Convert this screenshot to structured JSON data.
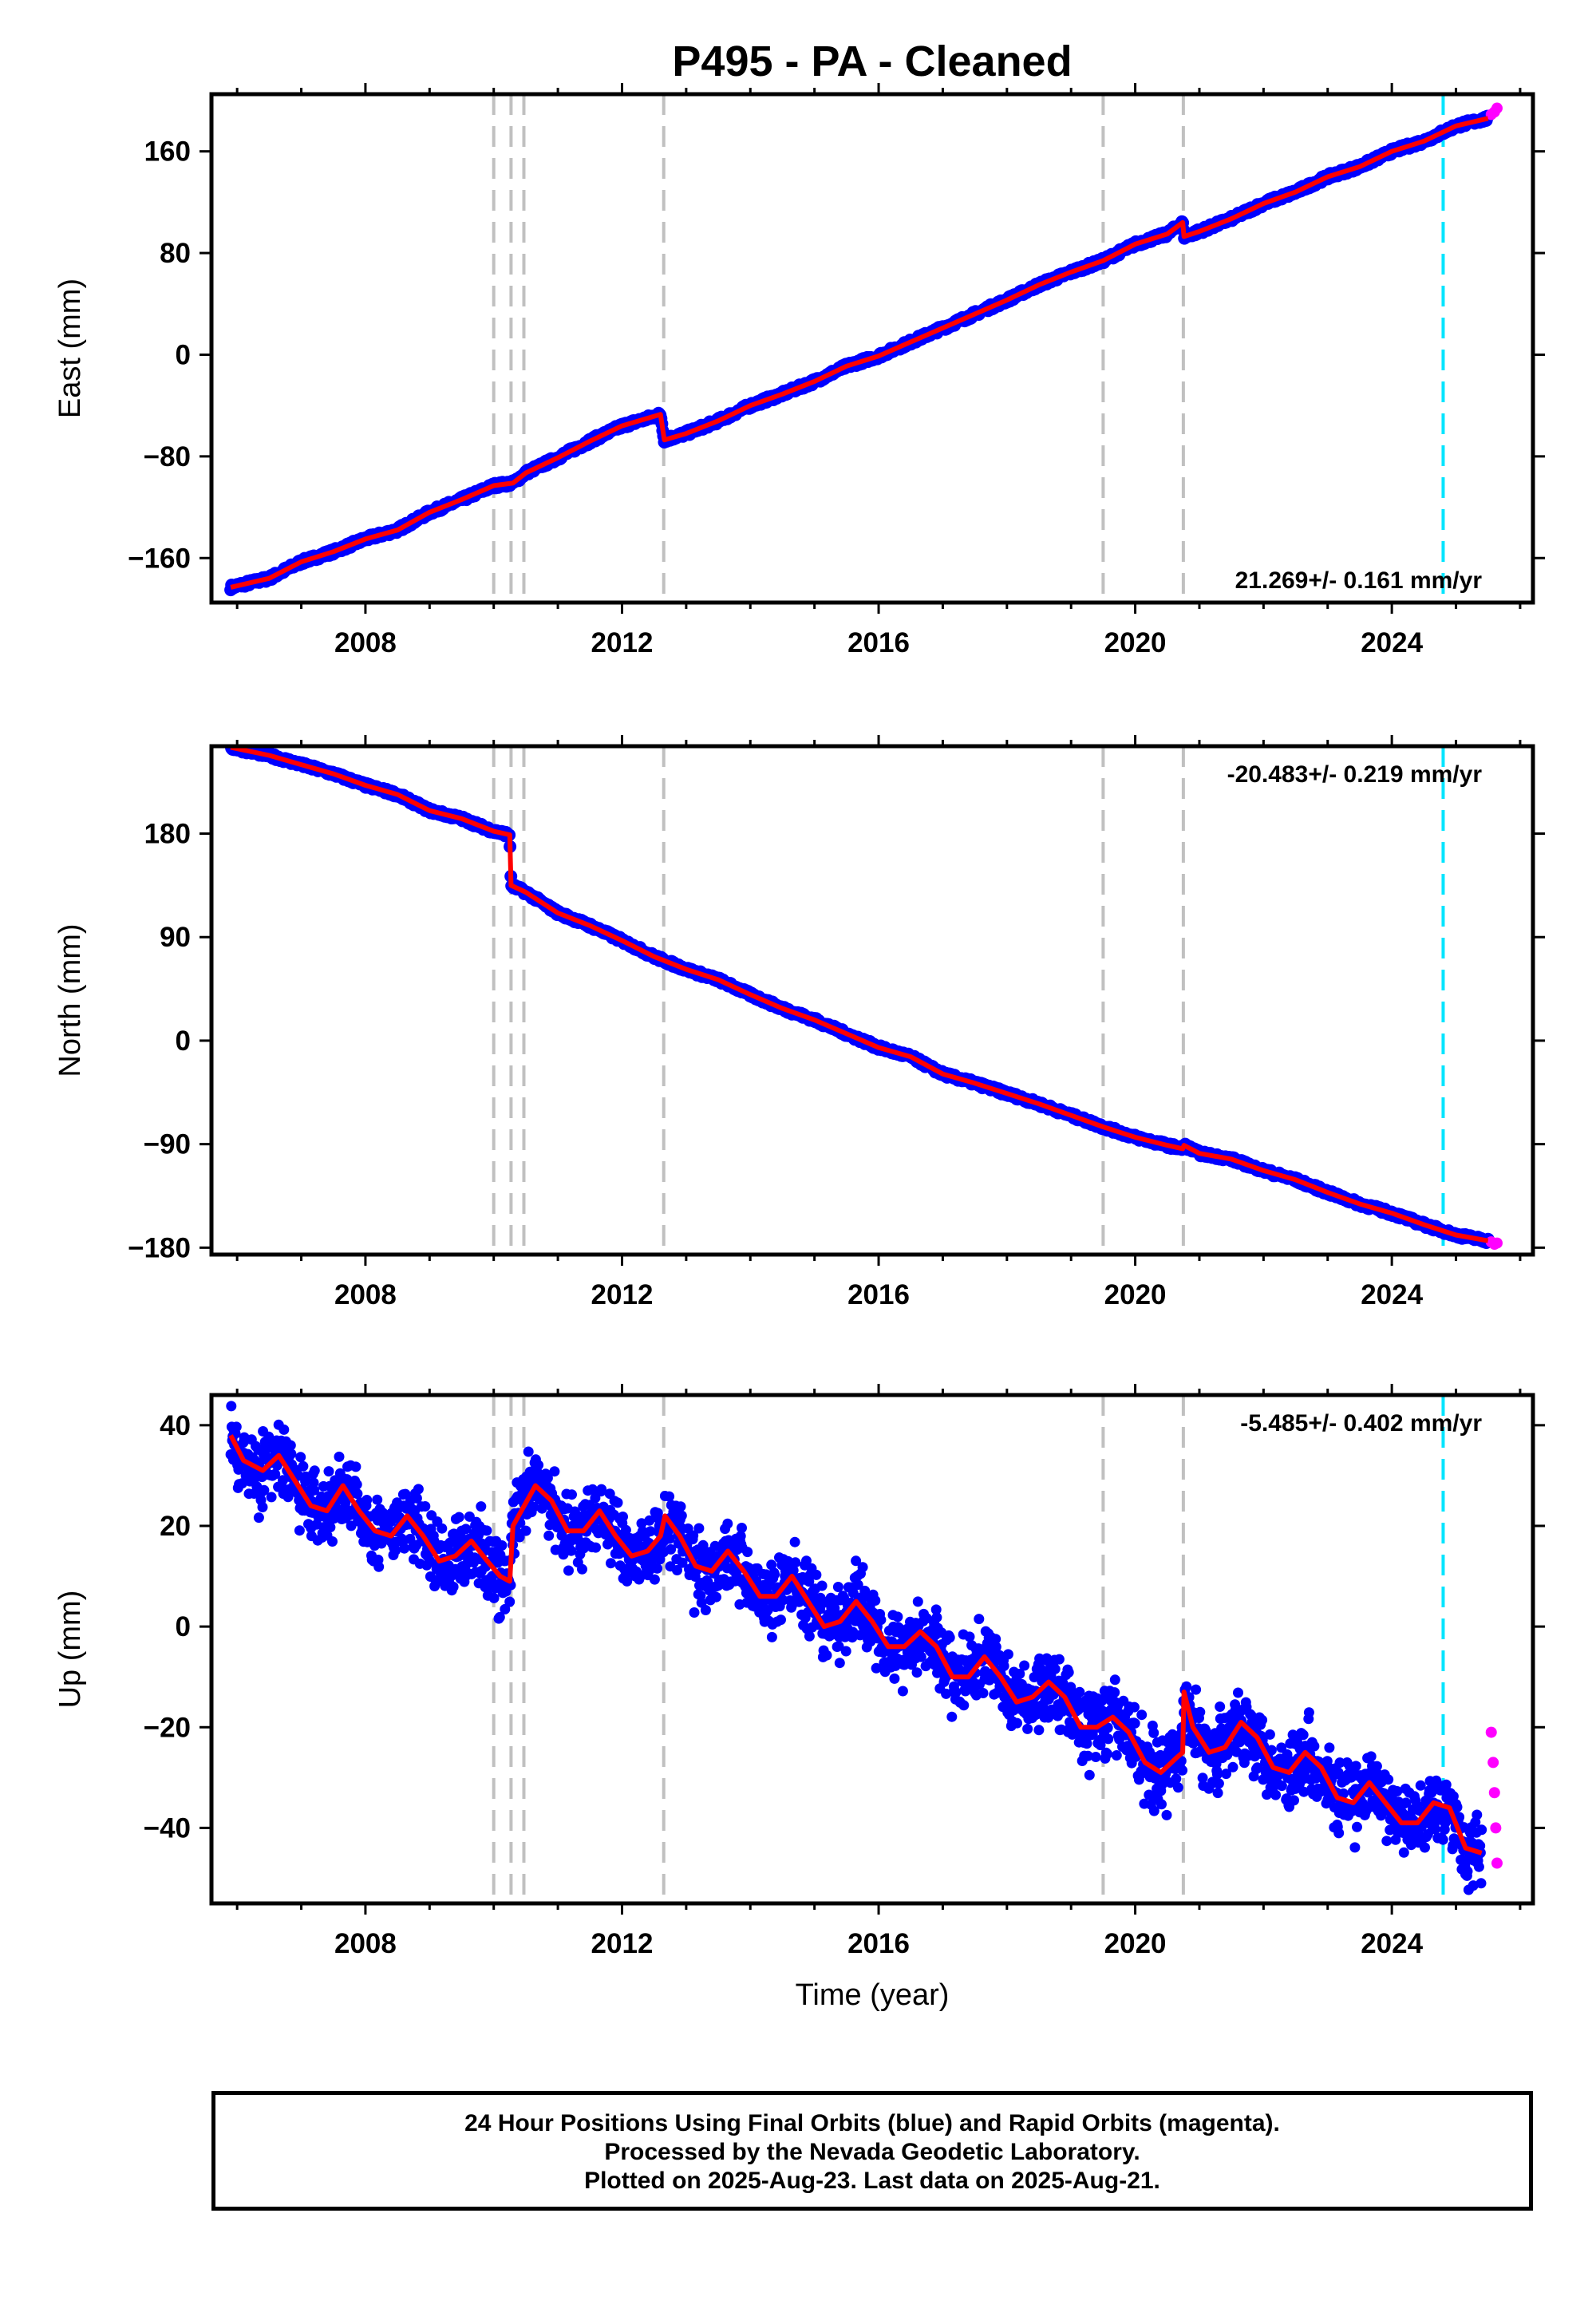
{
  "title": "P495  - PA - Cleaned",
  "xlabel": "Time (year)",
  "footer": {
    "line1": "24 Hour Positions Using Final Orbits (blue) and Rapid Orbits (magenta).",
    "line2": "Processed by the Nevada Geodetic Laboratory.",
    "line3": "Plotted on 2025-Aug-23. Last data on 2025-Aug-21."
  },
  "colors": {
    "final": "#0000ff",
    "rapid": "#ff00ff",
    "model": "#ff0000",
    "event_line": "#c0c0c0",
    "marker_line": "#00e5ff"
  },
  "chart_data": [
    {
      "type": "scatter",
      "panel": "east",
      "ylabel": "East (mm)",
      "xlim": [
        2005.6,
        2026.2
      ],
      "ylim": [
        -195,
        205
      ],
      "xticks": [
        2008,
        2012,
        2016,
        2020,
        2024
      ],
      "yticks": [
        -160,
        -80,
        0,
        80,
        160
      ],
      "rate_label": "21.269+/- 0.161 mm/yr",
      "rate_position": "bottom-right",
      "event_lines": [
        2010.0,
        2010.27,
        2010.47,
        2012.65,
        2019.5,
        2020.75
      ],
      "marker_line": 2024.8,
      "series": [
        {
          "name": "final",
          "x": [
            2005.9,
            2006.5,
            2007.0,
            2007.5,
            2008.0,
            2008.5,
            2009.0,
            2009.5,
            2010.0,
            2010.3,
            2010.5,
            2011.0,
            2011.5,
            2012.0,
            2012.6,
            2012.66,
            2013.0,
            2013.5,
            2014.0,
            2014.5,
            2015.0,
            2015.5,
            2016.0,
            2016.5,
            2017.0,
            2017.5,
            2018.0,
            2018.5,
            2019.0,
            2019.5,
            2020.0,
            2020.5,
            2020.74,
            2020.76,
            2021.0,
            2021.5,
            2022.0,
            2022.5,
            2023.0,
            2023.5,
            2024.0,
            2024.5,
            2025.0,
            2025.5
          ],
          "y": [
            -183,
            -176,
            -163,
            -155,
            -145,
            -138,
            -124,
            -114,
            -103,
            -101,
            -93,
            -81,
            -68,
            -56,
            -47,
            -67,
            -62,
            -52,
            -40,
            -31,
            -21,
            -9,
            -1,
            10,
            21,
            32,
            43,
            55,
            65,
            74,
            87,
            95,
            104,
            93,
            97,
            107,
            119,
            128,
            140,
            148,
            160,
            168,
            180,
            186
          ]
        },
        {
          "name": "rapid",
          "x": [
            2025.55,
            2025.6,
            2025.64
          ],
          "y": [
            189,
            191,
            194
          ]
        }
      ]
    },
    {
      "type": "scatter",
      "panel": "north",
      "ylabel": "North (mm)",
      "xlim": [
        2005.6,
        2026.2
      ],
      "ylim": [
        -186,
        256
      ],
      "xticks": [
        2008,
        2012,
        2016,
        2020,
        2024
      ],
      "yticks": [
        -180,
        -90,
        0,
        90,
        180
      ],
      "rate_label": "-20.483+/- 0.219 mm/yr",
      "rate_position": "top-right",
      "event_lines": [
        2010.0,
        2010.27,
        2010.47,
        2012.65,
        2019.5,
        2020.75
      ],
      "marker_line": 2024.8,
      "series": [
        {
          "name": "final",
          "x": [
            2005.9,
            2006.5,
            2007.0,
            2007.5,
            2008.0,
            2008.5,
            2009.0,
            2009.5,
            2010.0,
            2010.25,
            2010.27,
            2010.5,
            2011.0,
            2011.5,
            2012.0,
            2012.5,
            2013.0,
            2013.5,
            2014.0,
            2014.5,
            2015.0,
            2015.5,
            2016.0,
            2016.5,
            2017.0,
            2017.5,
            2018.0,
            2018.5,
            2019.0,
            2019.5,
            2020.0,
            2020.5,
            2020.74,
            2020.76,
            2021.0,
            2021.5,
            2022.0,
            2022.5,
            2023.0,
            2023.5,
            2024.0,
            2024.5,
            2025.0,
            2025.5
          ],
          "y": [
            255,
            248,
            240,
            232,
            222,
            214,
            200,
            193,
            182,
            179,
            135,
            129,
            111,
            100,
            87,
            73,
            62,
            53,
            40,
            28,
            18,
            6,
            -6,
            -14,
            -29,
            -37,
            -46,
            -55,
            -65,
            -75,
            -84,
            -91,
            -94,
            -91,
            -98,
            -103,
            -113,
            -121,
            -132,
            -142,
            -150,
            -160,
            -169,
            -174
          ]
        },
        {
          "name": "rapid",
          "x": [
            2025.55,
            2025.6,
            2025.64
          ],
          "y": [
            -175,
            -177,
            -176
          ]
        }
      ]
    },
    {
      "type": "scatter",
      "panel": "up",
      "ylabel": "Up (mm)",
      "xlim": [
        2005.6,
        2026.2
      ],
      "ylim": [
        -55,
        46
      ],
      "xticks": [
        2008,
        2012,
        2016,
        2020,
        2024
      ],
      "yticks": [
        -40,
        -20,
        0,
        20,
        40
      ],
      "rate_label": "-5.485+/- 0.402 mm/yr",
      "rate_position": "top-right",
      "event_lines": [
        2010.0,
        2010.27,
        2010.47,
        2012.65,
        2019.5,
        2020.75
      ],
      "marker_line": 2024.8,
      "scatter_sd": 3.6,
      "series": [
        {
          "name": "final",
          "x": [
            2005.9,
            2006.1,
            2006.4,
            2006.65,
            2006.9,
            2007.15,
            2007.4,
            2007.65,
            2007.9,
            2008.15,
            2008.4,
            2008.65,
            2008.9,
            2009.15,
            2009.4,
            2009.65,
            2009.9,
            2010.1,
            2010.25,
            2010.3,
            2010.65,
            2010.9,
            2011.15,
            2011.4,
            2011.65,
            2011.9,
            2012.15,
            2012.4,
            2012.6,
            2012.67,
            2012.9,
            2013.15,
            2013.4,
            2013.65,
            2013.9,
            2014.15,
            2014.4,
            2014.65,
            2014.9,
            2015.15,
            2015.4,
            2015.65,
            2015.9,
            2016.15,
            2016.4,
            2016.65,
            2016.9,
            2017.15,
            2017.4,
            2017.65,
            2017.9,
            2018.15,
            2018.4,
            2018.65,
            2018.9,
            2019.15,
            2019.4,
            2019.65,
            2019.9,
            2020.15,
            2020.4,
            2020.65,
            2020.74,
            2020.76,
            2020.9,
            2021.15,
            2021.4,
            2021.65,
            2021.9,
            2022.15,
            2022.4,
            2022.65,
            2022.9,
            2023.15,
            2023.4,
            2023.65,
            2023.9,
            2024.15,
            2024.4,
            2024.65,
            2024.9,
            2025.15,
            2025.4
          ],
          "y": [
            38,
            33,
            31,
            34,
            29,
            24,
            23,
            28,
            23,
            19,
            18,
            22,
            18,
            13,
            14,
            17,
            13,
            10,
            9,
            20,
            28,
            25,
            19,
            19,
            23,
            18,
            14,
            15,
            18,
            22,
            18,
            12,
            11,
            15,
            11,
            6,
            6,
            10,
            5,
            0,
            1,
            5,
            1,
            -4,
            -4,
            -1,
            -4,
            -10,
            -10,
            -6,
            -10,
            -15,
            -14,
            -11,
            -14,
            -20,
            -20,
            -18,
            -21,
            -27,
            -29,
            -26,
            -25,
            -13,
            -20,
            -25,
            -24,
            -19,
            -22,
            -28,
            -29,
            -25,
            -28,
            -34,
            -35,
            -31,
            -35,
            -39,
            -39,
            -35,
            -36,
            -44,
            -45
          ]
        },
        {
          "name": "rapid",
          "x": [
            2025.55,
            2025.58,
            2025.6,
            2025.62,
            2025.64
          ],
          "y": [
            -21,
            -27,
            -33,
            -40,
            -47
          ]
        }
      ]
    }
  ]
}
